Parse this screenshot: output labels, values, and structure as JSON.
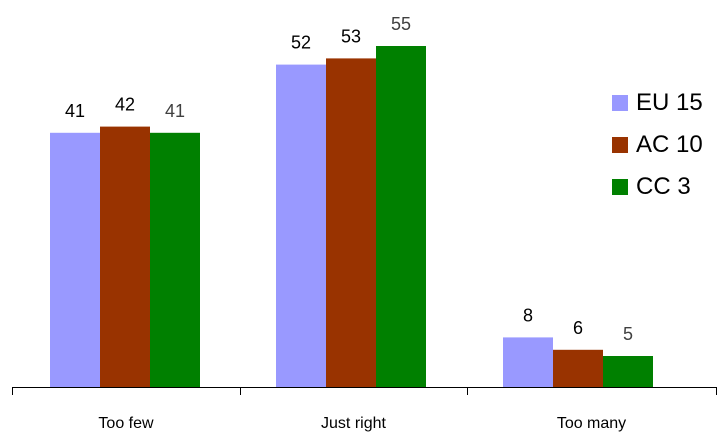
{
  "chart_data": {
    "type": "bar",
    "categories": [
      "Too few",
      "Just right",
      "Too many"
    ],
    "series": [
      {
        "name": "EU 15",
        "values": [
          41,
          52,
          8
        ],
        "color": "#9999ff"
      },
      {
        "name": "AC 10",
        "values": [
          42,
          53,
          6
        ],
        "color": "#993300"
      },
      {
        "name": "CC 3",
        "values": [
          41,
          55,
          5
        ],
        "color": "#008000"
      }
    ],
    "title": "",
    "xlabel": "",
    "ylabel": "",
    "ylim": [
      0,
      60
    ],
    "grid": false,
    "legend_position": "right",
    "data_label_colors": [
      "#000000",
      "#000000",
      "#404040"
    ]
  }
}
